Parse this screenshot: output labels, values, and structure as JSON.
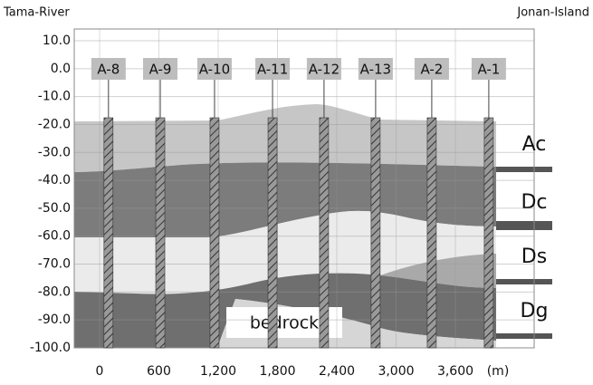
{
  "header": {
    "left": "Tama-River",
    "right": "Jonan-Island"
  },
  "axis": {
    "yticks": [
      {
        "value": 10,
        "label": "10.0"
      },
      {
        "value": 0,
        "label": "0.0"
      },
      {
        "value": -10,
        "label": "-10.0"
      },
      {
        "value": -20,
        "label": "-20.0"
      },
      {
        "value": -30,
        "label": "-30.0"
      },
      {
        "value": -40,
        "label": "-40.0"
      },
      {
        "value": -50,
        "label": "-50.0"
      },
      {
        "value": -60,
        "label": "-60.0"
      },
      {
        "value": -70,
        "label": "-70.0"
      },
      {
        "value": -80,
        "label": "-80.0"
      },
      {
        "value": -90,
        "label": "-90.0"
      },
      {
        "value": -100,
        "label": "-100.0"
      }
    ],
    "xticks": [
      0,
      600,
      {
        "value": 1200,
        "label": "1,200"
      },
      {
        "value": 1800,
        "label": "1,800"
      },
      {
        "value": 2400,
        "label": "2,400"
      },
      {
        "value": 3000,
        "label": "3,000"
      },
      {
        "value": 3600,
        "label": "3,600"
      }
    ],
    "x_unit": "(m)"
  },
  "boreholes": [
    {
      "label": "A-8",
      "x": 90
    },
    {
      "label": "A-9",
      "x": 614
    },
    {
      "label": "A-10",
      "x": 1163
    },
    {
      "label": "A-11",
      "x": 1750
    },
    {
      "label": "A-12",
      "x": 2271
    },
    {
      "label": "A-13",
      "x": 2793
    },
    {
      "label": "A-2",
      "x": 3361
    },
    {
      "label": "A-1",
      "x": 3938
    }
  ],
  "layers": [
    "Ac",
    "Dc",
    "Ds",
    "Dg",
    "bedrock"
  ]
}
